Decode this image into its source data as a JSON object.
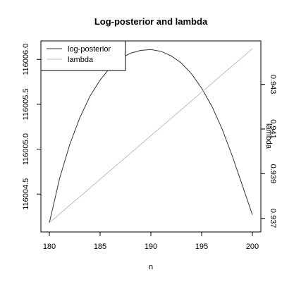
{
  "chart_data": {
    "type": "line",
    "title": "Log-posterior and lambda",
    "xlabel": "n",
    "ylabel_left": "",
    "ylabel_right": "lambda",
    "x": [
      180,
      181,
      182,
      183,
      184,
      185,
      186,
      187,
      188,
      189,
      190,
      191,
      192,
      193,
      194,
      195,
      196,
      197,
      198,
      199,
      200
    ],
    "xlim": [
      180,
      200
    ],
    "x_ticks": [
      180,
      185,
      190,
      195,
      200
    ],
    "y_left_lim": [
      116004.18,
      116006.12
    ],
    "y_left_ticks": [
      116004.5,
      116005.0,
      116005.5,
      116006.0
    ],
    "y_left_tick_labels": [
      "116004.5",
      "116005.0",
      "116005.5",
      "116006.0"
    ],
    "y_right_lim": [
      0.9368,
      0.9446
    ],
    "y_right_ticks": [
      0.937,
      0.939,
      0.941,
      0.943
    ],
    "y_right_tick_labels": [
      "0.937",
      "0.939",
      "0.941",
      "0.943"
    ],
    "series": [
      {
        "name": "log-posterior",
        "axis": "left",
        "color": "#333333",
        "values": [
          116004.18,
          116004.67,
          116005.05,
          116005.35,
          116005.59,
          116005.77,
          116005.91,
          116006.01,
          116006.07,
          116006.1,
          116006.11,
          116006.09,
          116006.04,
          116005.96,
          116005.84,
          116005.68,
          116005.48,
          116005.23,
          116004.93,
          116004.6,
          116004.27
        ]
      },
      {
        "name": "lambda",
        "axis": "right",
        "color": "#bebebe",
        "values": [
          0.9368,
          0.93719,
          0.93758,
          0.93797,
          0.93836,
          0.93875,
          0.93914,
          0.93953,
          0.93992,
          0.94031,
          0.9407,
          0.94109,
          0.94148,
          0.94187,
          0.94226,
          0.94265,
          0.94304,
          0.94343,
          0.94382,
          0.94421,
          0.9446
        ]
      }
    ],
    "legend": {
      "placement": "top-left",
      "entries": [
        "log-posterior",
        "lambda"
      ]
    },
    "grid": false
  }
}
